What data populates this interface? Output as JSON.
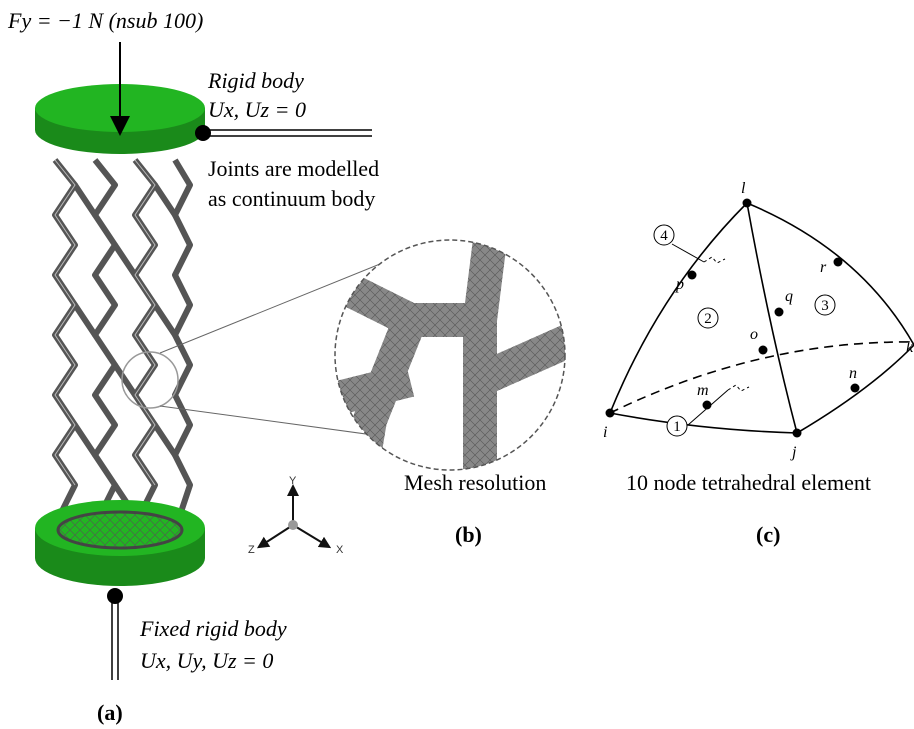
{
  "panel_a": {
    "load": "Fy = −1 N (nsub 100)",
    "top_support": [
      "Rigid body",
      "Ux, Uz = 0"
    ],
    "joint_note": [
      "Joints are modelled",
      "as continuum body"
    ],
    "bottom_support": [
      "Fixed rigid body",
      "Ux, Uy, Uz = 0"
    ],
    "axes": [
      "Y",
      "Z",
      "X"
    ],
    "label": "(a)"
  },
  "panel_b": {
    "caption": "Mesh resolution",
    "label": "(b)"
  },
  "panel_c": {
    "nodes": [
      "l",
      "p",
      "r",
      "q",
      "o",
      "m",
      "n",
      "i",
      "j",
      "k"
    ],
    "faces": [
      "4",
      "2",
      "3",
      "1"
    ],
    "caption": "10 node tetrahedral element",
    "label": "(c)"
  }
}
